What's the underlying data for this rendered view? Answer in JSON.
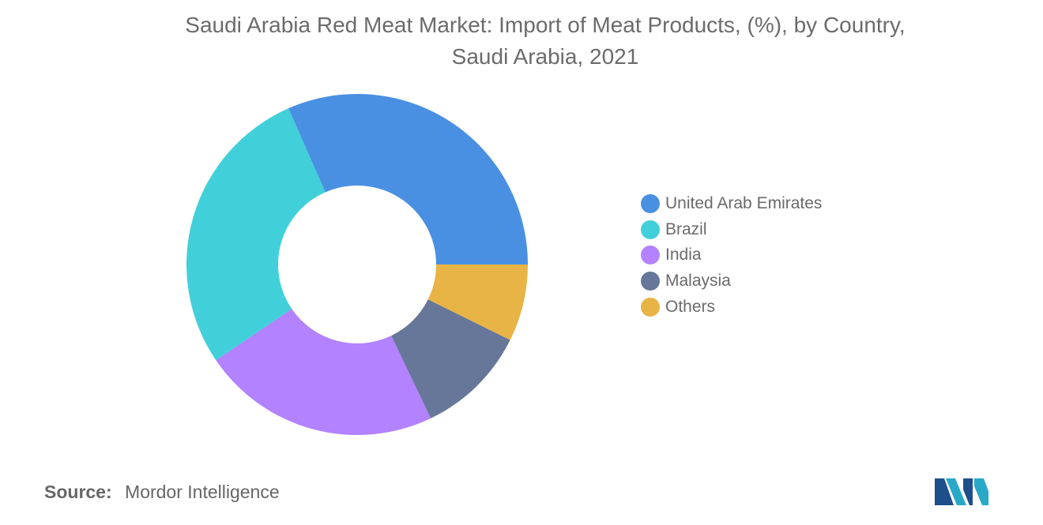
{
  "title": {
    "line1": "Saudi Arabia Red Meat Market: Import of Meat Products, (%), by Country,",
    "line2": "Saudi Arabia, 2021"
  },
  "source": {
    "label": "Source:",
    "value": "Mordor Intelligence"
  },
  "legend_items": [
    {
      "label": "United Arab Emirates",
      "color": "#4a90e2"
    },
    {
      "label": "Brazil",
      "color": "#41d0da"
    },
    {
      "label": "India",
      "color": "#b282ff"
    },
    {
      "label": "Malaysia",
      "color": "#667799"
    },
    {
      "label": "Others",
      "color": "#e8b445"
    }
  ],
  "chart_data": {
    "type": "pie",
    "donut": true,
    "title": "Saudi Arabia Red Meat Market: Import of Meat Products, (%), by Country, Saudi Arabia, 2021",
    "categories": [
      "United Arab Emirates",
      "Brazil",
      "India",
      "Malaysia",
      "Others"
    ],
    "values": [
      31.6,
      27.9,
      22.6,
      10.6,
      7.3
    ],
    "colors": [
      "#4a90e2",
      "#41d0da",
      "#b282ff",
      "#667799",
      "#e8b445"
    ],
    "legend": "right"
  },
  "logo": {
    "icon": "mordor-intelligence-logo-icon",
    "colors": [
      "#1f4f8a",
      "#2aa8c8"
    ]
  }
}
